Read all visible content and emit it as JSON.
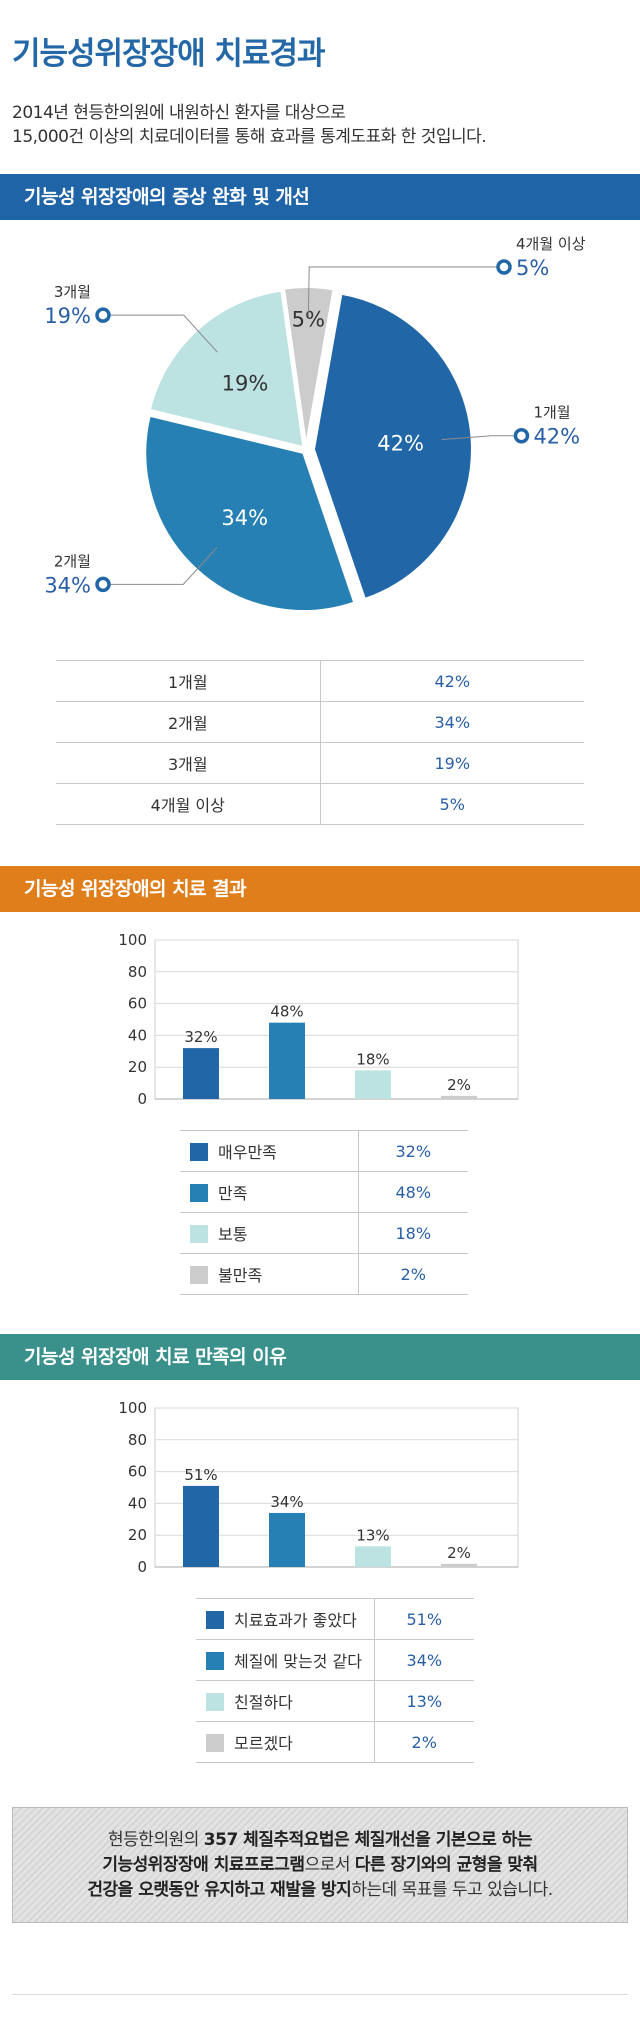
{
  "title": "기능성위장장애 치료경과",
  "intro": {
    "line1": "2014년 현등한의원에 내원하신 환자를 대상으로",
    "line2": "15,000건 이상의 치료데이터를 통해 효과를 통계도표화 한 것입니다."
  },
  "sections": [
    {
      "title": "기능성 위장장애의 증상 완화 및 개선"
    },
    {
      "title": "기능성 위장장애의 치료 결과"
    },
    {
      "title": "기능성 위장장애 치료 만족의 이유"
    }
  ],
  "chart_data": [
    {
      "type": "pie",
      "categories": [
        "1개월",
        "2개월",
        "3개월",
        "4개월 이상"
      ],
      "values": [
        42,
        34,
        19,
        5
      ],
      "colors": [
        "#2167a8",
        "#2680b4",
        "#bde2e2",
        "#cccccc"
      ],
      "table_values": [
        "42%",
        "34%",
        "19%",
        "5%"
      ]
    },
    {
      "type": "bar",
      "categories": [
        "매우만족",
        "만족",
        "보통",
        "불만족"
      ],
      "values": [
        32,
        48,
        18,
        2
      ],
      "labels": [
        "32%",
        "48%",
        "18%",
        "2%"
      ],
      "colors": [
        "#2167a8",
        "#2680b4",
        "#bde2e2",
        "#cccccc"
      ],
      "ylim": [
        0,
        100
      ],
      "yticks": [
        "0",
        "20",
        "40",
        "60",
        "80",
        "100"
      ],
      "grid": true
    },
    {
      "type": "bar",
      "categories": [
        "치료효과가 좋았다",
        "체질에 맞는것 같다",
        "친절하다",
        "모르겠다"
      ],
      "values": [
        51,
        34,
        13,
        2
      ],
      "labels": [
        "51%",
        "34%",
        "13%",
        "2%"
      ],
      "colors": [
        "#2167a8",
        "#2680b4",
        "#bde2e2",
        "#cccccc"
      ],
      "ylim": [
        0,
        100
      ],
      "yticks": [
        "0",
        "20",
        "40",
        "60",
        "80",
        "100"
      ],
      "grid": true
    }
  ],
  "note": {
    "p1": "현등한의원의 ",
    "b1": "357 체질추적요법은 체질개선을 기본으로 하는",
    "b2": "기능성위장장애 치료프로그램",
    "p2": "으로서 ",
    "b3": "다른 장기와의 균형을 맞춰",
    "b4": "건강을 오랫동안 유지하고 재발을 방지",
    "p3": "하는데 목표를 두고 있습니다."
  }
}
